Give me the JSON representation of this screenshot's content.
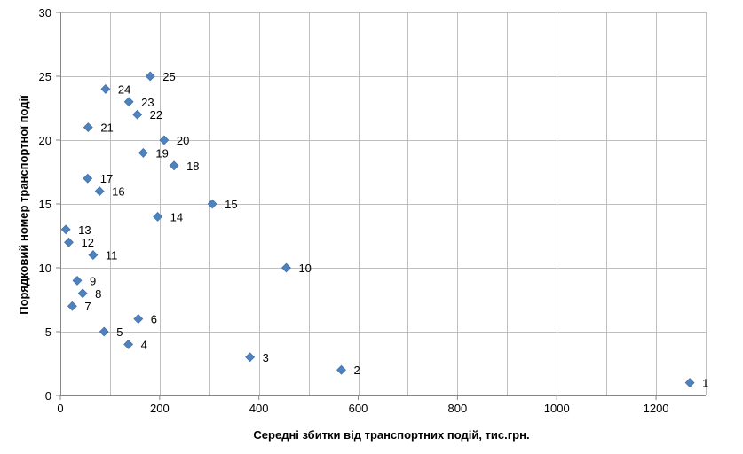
{
  "chart_data": {
    "type": "scatter",
    "title": "",
    "xlabel": "Середні збитки від транспортних подій, тис.грн.",
    "ylabel": "Порядковий номер транспортної події",
    "xlim": [
      0,
      1300
    ],
    "ylim": [
      0,
      30
    ],
    "x_ticks": [
      "0",
      "200",
      "400",
      "600",
      "800",
      "1000",
      "1200"
    ],
    "y_ticks": [
      "0",
      "5",
      "10",
      "15",
      "20",
      "25",
      "30"
    ],
    "grid": true,
    "legend": "none",
    "marker_color": "#4F81BD",
    "marker": "diamond",
    "points": [
      {
        "label": "1",
        "x": 1268,
        "y": 1
      },
      {
        "label": "2",
        "x": 566,
        "y": 2
      },
      {
        "label": "3",
        "x": 382,
        "y": 3
      },
      {
        "label": "4",
        "x": 137,
        "y": 4
      },
      {
        "label": "5",
        "x": 88,
        "y": 5
      },
      {
        "label": "6",
        "x": 157,
        "y": 6
      },
      {
        "label": "7",
        "x": 24,
        "y": 7
      },
      {
        "label": "8",
        "x": 45,
        "y": 8
      },
      {
        "label": "9",
        "x": 34,
        "y": 9
      },
      {
        "label": "10",
        "x": 455,
        "y": 10
      },
      {
        "label": "11",
        "x": 66,
        "y": 11
      },
      {
        "label": "12",
        "x": 17,
        "y": 12
      },
      {
        "label": "13",
        "x": 11,
        "y": 13
      },
      {
        "label": "14",
        "x": 196,
        "y": 14
      },
      {
        "label": "15",
        "x": 306,
        "y": 15
      },
      {
        "label": "16",
        "x": 79,
        "y": 16
      },
      {
        "label": "17",
        "x": 55,
        "y": 17
      },
      {
        "label": "18",
        "x": 229,
        "y": 18
      },
      {
        "label": "19",
        "x": 167,
        "y": 19
      },
      {
        "label": "20",
        "x": 209,
        "y": 20
      },
      {
        "label": "21",
        "x": 56,
        "y": 21
      },
      {
        "label": "22",
        "x": 155,
        "y": 22
      },
      {
        "label": "23",
        "x": 138,
        "y": 23
      },
      {
        "label": "24",
        "x": 91,
        "y": 24
      },
      {
        "label": "25",
        "x": 181,
        "y": 25
      }
    ]
  }
}
